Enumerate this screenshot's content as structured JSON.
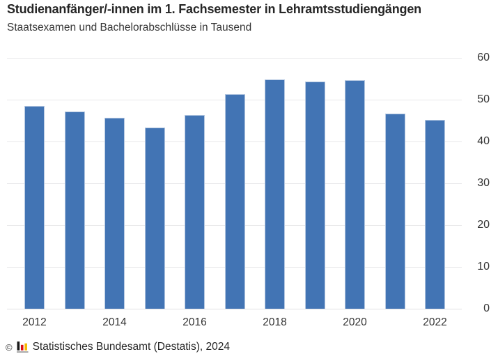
{
  "title": "Studienanfänger/-innen im 1. Fachsemester in Lehramtsstudiengängen",
  "subtitle": "Staatsexamen und Bachelorabschlüsse in Tausend",
  "footer": {
    "copyright": "©",
    "source": "Statistisches Bundesamt (Destatis), 2024",
    "logo_icon": "destatis-mini-bar-chart-icon",
    "logo_colors": {
      "black_bar": "#1a1a1a",
      "red_bar": "#dc0d15",
      "gold_bar": "#f6b800",
      "base_line": "#a0a0a0"
    }
  },
  "chart_data": {
    "type": "bar",
    "categories": [
      "2012",
      "2013",
      "2014",
      "2015",
      "2016",
      "2017",
      "2018",
      "2019",
      "2020",
      "2021",
      "2022"
    ],
    "values": [
      48.5,
      47.1,
      45.6,
      43.3,
      46.3,
      51.4,
      54.8,
      54.3,
      54.6,
      46.6,
      45.1
    ],
    "title": "Studienanfänger/-innen im 1. Fachsemester in Lehramtsstudiengängen",
    "subtitle": "Staatsexamen und Bachelorabschlüsse in Tausend",
    "xlabel": "",
    "ylabel": "",
    "ylim": [
      0,
      60
    ],
    "yticks": [
      0,
      10,
      20,
      30,
      40,
      50,
      60
    ],
    "xtick_labels": [
      "2012",
      "2014",
      "2016",
      "2018",
      "2020",
      "2022"
    ],
    "xtick_every_n_bars": 2,
    "bar_color": "#4274b4",
    "bar_edge_color": "#b5c8e1",
    "grid": true,
    "gridline_color": "#e8e8ea",
    "legend": false,
    "y_axis_position": "right"
  }
}
